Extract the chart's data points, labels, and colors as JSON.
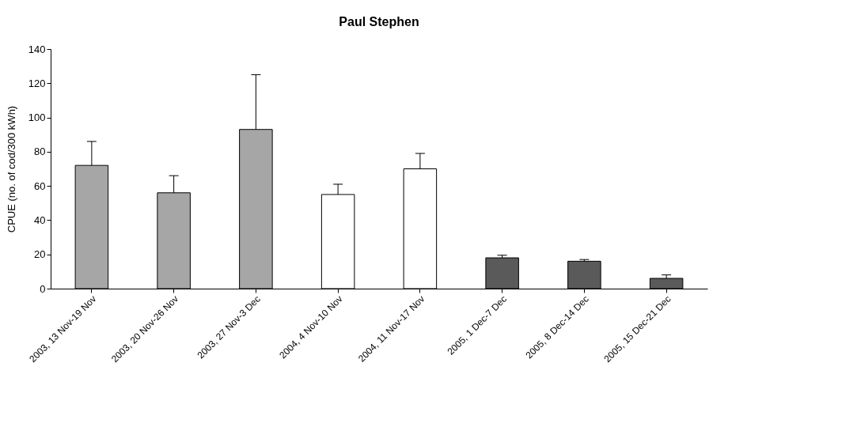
{
  "chart_data": {
    "type": "bar",
    "title": "Paul Stephen",
    "ylabel": "CPUE (no. of cod/300 kWh)",
    "categories": [
      "2003, 13 Nov-19 Nov",
      "2003, 20 Nov-26 Nov",
      "2003, 27 Nov-3 Dec",
      "2004, 4 Nov-10 Nov",
      "2004, 11 Nov-17 Nov",
      "2005, 1 Dec-7 Dec",
      "2005, 8 Dec-14 Dec",
      "2005, 15 Dec-21 Dec"
    ],
    "values": [
      72,
      56,
      93,
      55,
      70,
      18,
      16,
      6
    ],
    "errors": [
      [
        72,
        86
      ],
      [
        56,
        66
      ],
      [
        93,
        125
      ],
      [
        55,
        61
      ],
      [
        70,
        79
      ],
      [
        18,
        19.5
      ],
      [
        16,
        17
      ],
      [
        6,
        8
      ]
    ],
    "colors": [
      "#a6a6a6",
      "#a6a6a6",
      "#a6a6a6",
      "#ffffff",
      "#ffffff",
      "#5a5a5a",
      "#5a5a5a",
      "#5a5a5a"
    ],
    "ylim": [
      0,
      140
    ],
    "yticks": [
      0,
      20,
      40,
      60,
      80,
      100,
      120,
      140
    ],
    "grid": false
  }
}
